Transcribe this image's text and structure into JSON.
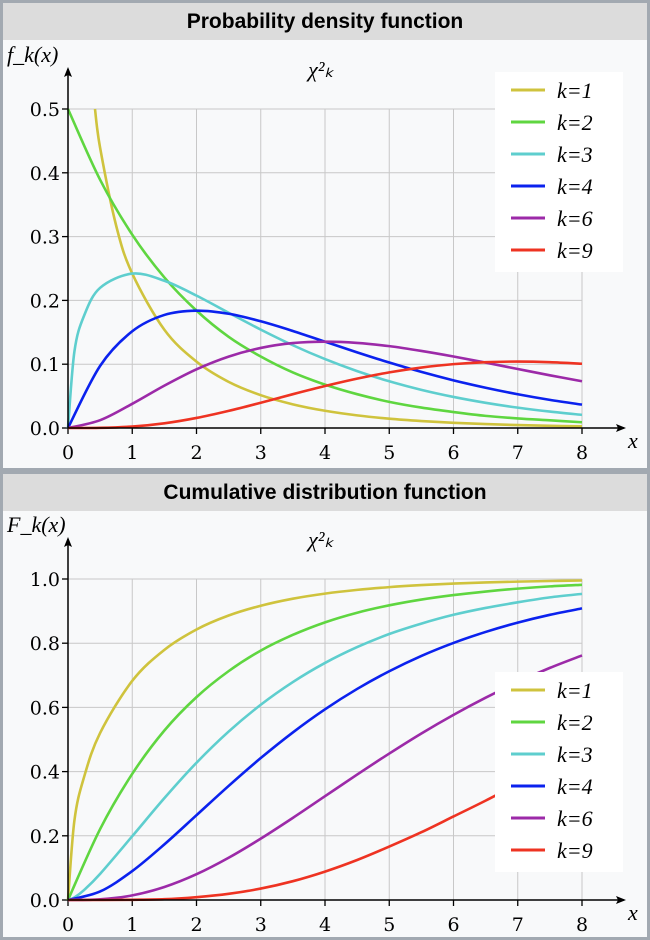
{
  "chart_data": [
    {
      "type": "line",
      "title": "Probability density function",
      "subtitle": "χ²ₖ",
      "ylabel": "f_k(x)",
      "xlabel": "x",
      "xlim": [
        0,
        8
      ],
      "ylim": [
        0,
        0.5
      ],
      "xticks": [
        "0",
        "1",
        "2",
        "3",
        "4",
        "5",
        "6",
        "7",
        "8"
      ],
      "yticks": [
        "0.0",
        "0.1",
        "0.2",
        "0.3",
        "0.4",
        "0.5"
      ],
      "grid": true,
      "legend_position": "top-right",
      "x": [
        0,
        0.5,
        1,
        1.5,
        2,
        2.5,
        3,
        3.5,
        4,
        4.5,
        5,
        5.5,
        6,
        6.5,
        7,
        7.5,
        8
      ],
      "series": [
        {
          "name": "k=1",
          "color": "#cfc33d",
          "x": [
            0.42,
            0.5,
            0.75,
            1,
            1.5,
            2,
            2.5,
            3,
            3.5,
            4,
            4.5,
            5,
            5.5,
            6,
            6.5,
            7,
            7.5,
            8
          ],
          "values": [
            0.5,
            0.439,
            0.317,
            0.242,
            0.154,
            0.104,
            0.0723,
            0.0514,
            0.0371,
            0.027,
            0.0198,
            0.0146,
            0.0109,
            0.0081,
            0.0061,
            0.0046,
            0.0034,
            0.0026
          ]
        },
        {
          "name": "k=2",
          "color": "#5fd640",
          "values": [
            0.5,
            0.389,
            0.303,
            0.236,
            0.184,
            0.143,
            0.112,
            0.087,
            0.068,
            0.053,
            0.041,
            0.032,
            0.025,
            0.019,
            0.015,
            0.012,
            0.009
          ]
        },
        {
          "name": "k=3",
          "color": "#5ecece",
          "x": [
            0,
            0.1,
            0.25,
            0.5,
            1,
            1.5,
            2,
            2.5,
            3,
            3.5,
            4,
            4.5,
            5,
            5.5,
            6,
            6.5,
            7,
            7.5,
            8
          ],
          "values": [
            0,
            0.12,
            0.176,
            0.2197,
            0.242,
            0.2308,
            0.2075,
            0.1807,
            0.1542,
            0.1297,
            0.108,
            0.0892,
            0.0732,
            0.0598,
            0.0487,
            0.0395,
            0.0319,
            0.0257,
            0.0206
          ]
        },
        {
          "name": "k=4",
          "color": "#0b22ee",
          "values": [
            0,
            0.0974,
            0.1516,
            0.1772,
            0.1839,
            0.1791,
            0.1673,
            0.1521,
            0.1353,
            0.1186,
            0.1026,
            0.0879,
            0.0747,
            0.0631,
            0.0529,
            0.0441,
            0.0366
          ]
        },
        {
          "name": "k=6",
          "color": "#9c2aa8",
          "values": [
            0,
            0.0122,
            0.0379,
            0.0664,
            0.092,
            0.1119,
            0.1255,
            0.1331,
            0.1353,
            0.1334,
            0.1283,
            0.1208,
            0.1121,
            0.1025,
            0.0925,
            0.0826,
            0.0733
          ]
        },
        {
          "name": "k=9",
          "color": "#ee3322",
          "values": [
            0,
            0.00026,
            0.0023,
            0.0074,
            0.0158,
            0.0269,
            0.0396,
            0.053,
            0.0658,
            0.0774,
            0.0872,
            0.0947,
            0.1001,
            0.1032,
            0.1041,
            0.1032,
            0.1007
          ]
        }
      ]
    },
    {
      "type": "line",
      "title": "Cumulative distribution function",
      "subtitle": "χ²ₖ",
      "ylabel": "F_k(x)",
      "xlabel": "x",
      "xlim": [
        0,
        8
      ],
      "ylim": [
        0,
        1
      ],
      "xticks": [
        "0",
        "1",
        "2",
        "3",
        "4",
        "5",
        "6",
        "7",
        "8"
      ],
      "yticks": [
        "0.0",
        "0.2",
        "0.4",
        "0.6",
        "0.8",
        "1.0"
      ],
      "grid": true,
      "legend_position": "bottom-right",
      "x": [
        0,
        0.5,
        1,
        1.5,
        2,
        2.5,
        3,
        3.5,
        4,
        4.5,
        5,
        5.5,
        6,
        6.5,
        7,
        7.5,
        8
      ],
      "series": [
        {
          "name": "k=1",
          "color": "#cfc33d",
          "x": [
            0,
            0.1,
            0.25,
            0.5,
            1,
            1.5,
            2,
            2.5,
            3,
            3.5,
            4,
            4.5,
            5,
            5.5,
            6,
            6.5,
            7,
            7.5,
            8
          ],
          "values": [
            0,
            0.248,
            0.383,
            0.5205,
            0.6827,
            0.7793,
            0.8427,
            0.8862,
            0.9167,
            0.9387,
            0.9545,
            0.9661,
            0.9747,
            0.981,
            0.9857,
            0.9892,
            0.9918,
            0.9938,
            0.9953
          ]
        },
        {
          "name": "k=2",
          "color": "#5fd640",
          "values": [
            0,
            0.221,
            0.393,
            0.528,
            0.632,
            0.713,
            0.777,
            0.826,
            0.865,
            0.895,
            0.918,
            0.936,
            0.95,
            0.961,
            0.97,
            0.977,
            0.982
          ]
        },
        {
          "name": "k=3",
          "color": "#5ecece",
          "x": [
            0,
            0.1,
            0.25,
            0.5,
            1,
            1.5,
            2,
            2.5,
            3,
            3.5,
            4,
            4.5,
            5,
            5.5,
            6,
            6.5,
            7,
            7.5,
            8
          ],
          "values": [
            0,
            0.008,
            0.031,
            0.0815,
            0.1987,
            0.3173,
            0.4276,
            0.5247,
            0.6083,
            0.679,
            0.7385,
            0.7879,
            0.8287,
            0.8611,
            0.8885,
            0.9099,
            0.9274,
            0.9428,
            0.9537
          ]
        },
        {
          "name": "k=4",
          "color": "#0b22ee",
          "values": [
            0,
            0.0265,
            0.0902,
            0.1733,
            0.2642,
            0.3554,
            0.4422,
            0.5221,
            0.594,
            0.6575,
            0.7127,
            0.7604,
            0.8009,
            0.8351,
            0.8641,
            0.8884,
            0.9084
          ]
        },
        {
          "name": "k=6",
          "color": "#9c2aa8",
          "values": [
            0,
            0.0022,
            0.0144,
            0.0405,
            0.0803,
            0.1316,
            0.1912,
            0.2559,
            0.3233,
            0.3907,
            0.4562,
            0.5188,
            0.5768,
            0.6302,
            0.6791,
            0.7231,
            0.7619
          ]
        },
        {
          "name": "k=9",
          "color": "#ee3322",
          "values": [
            0,
            1e-05,
            0.0006,
            0.0024,
            0.0089,
            0.0192,
            0.0356,
            0.0586,
            0.0885,
            0.1246,
            0.1664,
            0.2111,
            0.2602,
            0.3096,
            0.3617,
            0.415,
            0.4655
          ]
        }
      ]
    }
  ]
}
